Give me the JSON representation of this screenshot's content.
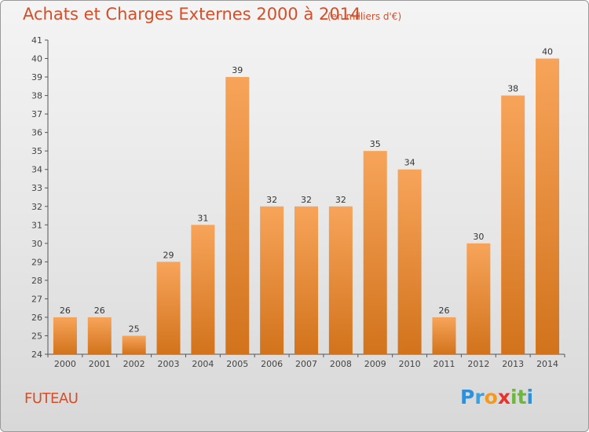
{
  "title": "Achats et Charges Externes 2000 à 2014",
  "subtitle": "(en milliers d'€)",
  "town": "FUTEAU",
  "logo_text": "Proxiti",
  "chart_data": {
    "type": "bar",
    "categories": [
      "2000",
      "2001",
      "2002",
      "2003",
      "2004",
      "2005",
      "2006",
      "2007",
      "2008",
      "2009",
      "2010",
      "2011",
      "2012",
      "2013",
      "2014"
    ],
    "values": [
      26,
      26,
      25,
      29,
      31,
      39,
      32,
      32,
      32,
      35,
      34,
      26,
      30,
      38,
      40
    ],
    "title": "Achats et Charges Externes 2000 à 2014",
    "ylim": [
      24,
      41
    ],
    "yticks": [
      24,
      25,
      26,
      27,
      28,
      29,
      30,
      31,
      32,
      33,
      34,
      35,
      36,
      37,
      38,
      39,
      40,
      41
    ],
    "grid": false,
    "bar_color_light": "#f7a45a",
    "bar_color_dark": "#d2731c"
  }
}
